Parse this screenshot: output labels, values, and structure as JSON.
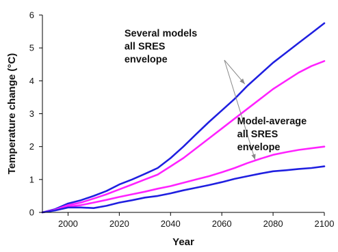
{
  "chart_data": {
    "type": "line",
    "title": "",
    "xlabel": "Year",
    "ylabel": "Temperature change (°C)",
    "xlim": [
      1990,
      2100
    ],
    "ylim": [
      0,
      6
    ],
    "xticks": [
      2000,
      2020,
      2040,
      2060,
      2080,
      2100
    ],
    "yticks": [
      0,
      1,
      2,
      3,
      4,
      5,
      6
    ],
    "grid": false,
    "series": [
      {
        "color": "#1f1fe0",
        "x": [
          1990,
          1995,
          2000,
          2005,
          2010,
          2015,
          2020,
          2025,
          2030,
          2035,
          2040,
          2045,
          2050,
          2055,
          2060,
          2065,
          2070,
          2075,
          2080,
          2085,
          2090,
          2095,
          2100
        ],
        "y": [
          0.0,
          0.1,
          0.27,
          0.37,
          0.5,
          0.65,
          0.85,
          1.0,
          1.17,
          1.35,
          1.65,
          2.0,
          2.38,
          2.75,
          3.1,
          3.45,
          3.85,
          4.2,
          4.55,
          4.85,
          5.15,
          5.45,
          5.75
        ]
      },
      {
        "color": "#ff22ff",
        "x": [
          1990,
          1995,
          2000,
          2005,
          2010,
          2015,
          2020,
          2025,
          2030,
          2035,
          2040,
          2045,
          2050,
          2055,
          2060,
          2065,
          2070,
          2075,
          2080,
          2085,
          2090,
          2095,
          2100
        ],
        "y": [
          0.0,
          0.08,
          0.22,
          0.3,
          0.42,
          0.55,
          0.7,
          0.85,
          1.0,
          1.15,
          1.4,
          1.65,
          1.95,
          2.25,
          2.55,
          2.85,
          3.15,
          3.45,
          3.75,
          4.0,
          4.25,
          4.45,
          4.6
        ]
      },
      {
        "color": "#ff22ff",
        "x": [
          1990,
          1995,
          2000,
          2005,
          2010,
          2015,
          2020,
          2025,
          2030,
          2035,
          2040,
          2045,
          2050,
          2055,
          2060,
          2065,
          2070,
          2075,
          2080,
          2085,
          2090,
          2095,
          2100
        ],
        "y": [
          0.0,
          0.07,
          0.18,
          0.22,
          0.3,
          0.38,
          0.47,
          0.55,
          0.63,
          0.72,
          0.8,
          0.9,
          1.0,
          1.1,
          1.22,
          1.35,
          1.5,
          1.63,
          1.75,
          1.83,
          1.9,
          1.95,
          2.0
        ]
      },
      {
        "color": "#1f1fe0",
        "x": [
          1990,
          1995,
          2000,
          2005,
          2010,
          2015,
          2020,
          2025,
          2030,
          2035,
          2040,
          2045,
          2050,
          2055,
          2060,
          2065,
          2070,
          2075,
          2080,
          2085,
          2090,
          2095,
          2100
        ],
        "y": [
          0.0,
          0.06,
          0.15,
          0.15,
          0.13,
          0.2,
          0.3,
          0.37,
          0.45,
          0.5,
          0.58,
          0.67,
          0.75,
          0.83,
          0.92,
          1.02,
          1.1,
          1.18,
          1.25,
          1.28,
          1.32,
          1.35,
          1.4
        ]
      }
    ],
    "annotations": [
      {
        "lines": [
          "Several models",
          "all SRES",
          "envelope"
        ],
        "text_x": 2022,
        "text_y": 5.35,
        "arrows": [
          {
            "from": [
              2061,
              4.63
            ],
            "to": [
              2069,
              3.9
            ]
          },
          {
            "from": [
              2061,
              4.63
            ],
            "to": [
              2073,
              1.6
            ]
          }
        ]
      },
      {
        "lines": [
          "Model-average",
          "all SRES",
          "envelope"
        ],
        "text_x": 2066,
        "text_y": 2.68,
        "arrows": []
      }
    ]
  }
}
